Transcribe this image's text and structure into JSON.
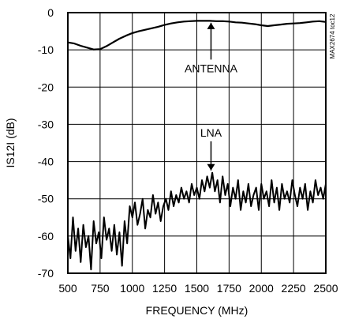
{
  "chart_data": {
    "type": "line",
    "xlabel": "FREQUENCY (MHz)",
    "ylabel": "IS12I (dB)",
    "xlim": [
      500,
      2500
    ],
    "ylim": [
      -70,
      0
    ],
    "xticks": [
      "500",
      "750",
      "1000",
      "1250",
      "1500",
      "1750",
      "2000",
      "2250",
      "2500"
    ],
    "yticks": [
      "0",
      "-10",
      "-20",
      "-30",
      "-40",
      "-50",
      "-60",
      "-70"
    ],
    "grid": true,
    "annotations": [
      {
        "text": "ANTENNA",
        "x": 1610,
        "y": -16.0,
        "arrow_to": [
          1610,
          -2.3
        ]
      },
      {
        "text": "LNA",
        "x": 1610,
        "y": -33.3,
        "arrow_to": [
          1610,
          -42.8
        ]
      }
    ],
    "side_label": "MAX2674 toc12",
    "series": [
      {
        "name": "ANTENNA",
        "x": [
          500,
          550,
          600,
          650,
          700,
          750,
          800,
          850,
          900,
          950,
          1000,
          1050,
          1100,
          1150,
          1200,
          1250,
          1300,
          1350,
          1400,
          1450,
          1500,
          1550,
          1600,
          1650,
          1700,
          1750,
          1800,
          1850,
          1900,
          1950,
          2000,
          2050,
          2100,
          2150,
          2200,
          2250,
          2300,
          2350,
          2400,
          2450,
          2500
        ],
        "values": [
          -8.0,
          -8.3,
          -8.9,
          -9.4,
          -9.9,
          -9.8,
          -9.0,
          -8.0,
          -7.0,
          -6.2,
          -5.5,
          -5.0,
          -4.6,
          -4.2,
          -3.8,
          -3.3,
          -2.9,
          -2.6,
          -2.4,
          -2.3,
          -2.2,
          -2.2,
          -2.2,
          -2.3,
          -2.3,
          -2.4,
          -2.6,
          -2.7,
          -2.9,
          -3.1,
          -3.4,
          -3.6,
          -3.4,
          -3.2,
          -3.0,
          -2.9,
          -2.8,
          -2.6,
          -2.4,
          -2.3,
          -2.5
        ]
      },
      {
        "name": "LNA",
        "x": [
          500,
          520,
          540,
          560,
          580,
          600,
          620,
          640,
          660,
          680,
          700,
          720,
          740,
          760,
          780,
          800,
          820,
          840,
          860,
          880,
          900,
          920,
          940,
          960,
          980,
          1000,
          1020,
          1040,
          1060,
          1080,
          1100,
          1120,
          1140,
          1160,
          1180,
          1200,
          1220,
          1240,
          1260,
          1280,
          1300,
          1320,
          1340,
          1360,
          1380,
          1400,
          1420,
          1440,
          1460,
          1480,
          1500,
          1520,
          1540,
          1560,
          1580,
          1600,
          1620,
          1640,
          1660,
          1680,
          1700,
          1720,
          1740,
          1760,
          1780,
          1800,
          1820,
          1840,
          1860,
          1880,
          1900,
          1920,
          1940,
          1960,
          1980,
          2000,
          2020,
          2040,
          2060,
          2080,
          2100,
          2120,
          2140,
          2160,
          2180,
          2200,
          2220,
          2240,
          2260,
          2280,
          2300,
          2320,
          2340,
          2360,
          2380,
          2400,
          2420,
          2440,
          2460,
          2480,
          2500
        ],
        "values": [
          -60,
          -66,
          -55,
          -64,
          -58,
          -67,
          -57,
          -63,
          -60,
          -69,
          -56,
          -62,
          -59,
          -66,
          -55,
          -61,
          -58,
          -64,
          -57,
          -65,
          -59,
          -68,
          -56,
          -62,
          -52,
          -55,
          -51,
          -57,
          -54,
          -50,
          -58,
          -53,
          -55,
          -49,
          -54,
          -51,
          -56,
          -52,
          -50,
          -53,
          -48,
          -52,
          -49,
          -51,
          -47,
          -50,
          -48,
          -51,
          -46,
          -49,
          -47,
          -50,
          -45,
          -48,
          -44,
          -47,
          -43,
          -48,
          -45,
          -51,
          -44,
          -49,
          -46,
          -52,
          -47,
          -50,
          -45,
          -53,
          -48,
          -51,
          -46,
          -52,
          -49,
          -47,
          -53,
          -46,
          -50,
          -48,
          -52,
          -45,
          -51,
          -47,
          -53,
          -46,
          -50,
          -48,
          -51,
          -45,
          -49,
          -52,
          -47,
          -50,
          -46,
          -53,
          -48,
          -51,
          -45,
          -49,
          -47,
          -50,
          -46
        ]
      }
    ]
  }
}
